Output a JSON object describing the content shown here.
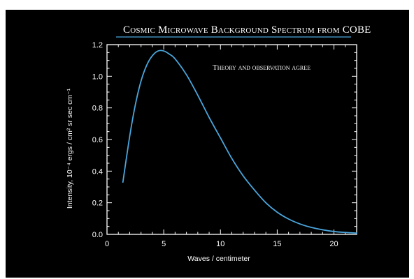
{
  "chart_data": {
    "type": "line",
    "title": "Cosmic Microwave Background Spectrum from COBE",
    "annotation": "Theory and observation agree",
    "xlabel": "Waves / centimeter",
    "ylabel": "Intensity, 10⁻⁴ ergs / cm² sr sec cm⁻¹",
    "xlim": [
      0,
      22
    ],
    "ylim": [
      0,
      1.2
    ],
    "xticks": [
      0,
      5,
      10,
      15,
      20
    ],
    "xtick_labels": [
      "0",
      "5",
      "10",
      "15",
      "20"
    ],
    "yticks": [
      0,
      0.2,
      0.4,
      0.6,
      0.8,
      1.0,
      1.2
    ],
    "ytick_labels": [
      "0.0",
      "0.2",
      "0.4",
      "0.6",
      "0.8",
      "1.0",
      "1.2"
    ],
    "grid": false,
    "series": [
      {
        "color": "#4aa6dd",
        "x": [
          1.4,
          2,
          2.5,
          3,
          3.5,
          4,
          4.5,
          5,
          5.5,
          6,
          7,
          8,
          9,
          10,
          11,
          12,
          13,
          14,
          15,
          16,
          17,
          18,
          19,
          20,
          21,
          22
        ],
        "y": [
          0.33,
          0.62,
          0.82,
          0.97,
          1.07,
          1.13,
          1.16,
          1.16,
          1.14,
          1.11,
          1.01,
          0.88,
          0.74,
          0.61,
          0.48,
          0.37,
          0.28,
          0.2,
          0.14,
          0.097,
          0.066,
          0.044,
          0.029,
          0.018,
          0.012,
          0.008
        ]
      }
    ]
  },
  "colors": {
    "background": "#000000",
    "axis": "#ffffff",
    "curve": "#4aa6dd",
    "title_underline": "#4aa6dd"
  }
}
